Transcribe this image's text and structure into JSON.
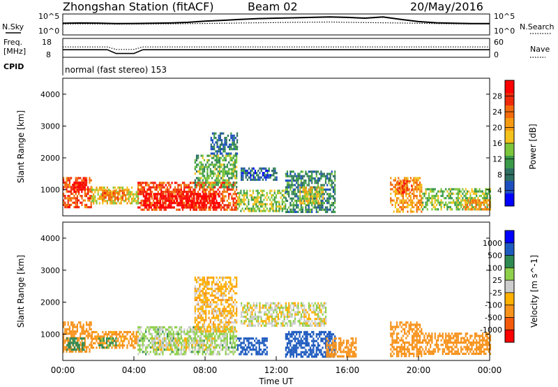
{
  "header": {
    "station": "Zhongshan Station (fitACF)",
    "beam": "Beam 02",
    "date": "20/May/2016"
  },
  "top_panels": {
    "nsky_label": "N.Sky",
    "nsky_tick_hi": "10^5",
    "nsky_tick_lo": "10^0",
    "nsearch_label": "N.Search",
    "nsearch_tick_hi": "10^5",
    "nsearch_tick_lo": "10^0",
    "freq_label_1": "Freq.",
    "freq_label_2": "[MHz]",
    "freq_tick_hi": "18",
    "freq_tick_lo": "8",
    "nave_label": "Nave",
    "nave_tick_hi": "60",
    "nave_tick_lo": "0",
    "cpid_label": "CPID",
    "cpid_text": "normal (fast stereo) 153"
  },
  "colors": {
    "power": [
      "#0000ff",
      "#1e4fbf",
      "#2e6f62",
      "#3a9a4a",
      "#7cc63c",
      "#f4c21c",
      "#f59a10",
      "#f26a0c",
      "#ee2a0a",
      "#ff0000"
    ],
    "velocity": [
      "#ff0000",
      "#f55a0a",
      "#f7921a",
      "#ffb000",
      "#cdcdcd",
      "#8fd04a",
      "#2e8a52",
      "#1e5bbf",
      "#0000ff"
    ]
  },
  "chart_data": [
    {
      "type": "line",
      "title": "N.Sky / N.Search",
      "x": [
        0,
        1,
        2,
        3,
        4,
        5,
        6,
        7,
        8,
        9,
        10,
        11,
        12,
        13,
        14,
        15,
        16,
        17,
        18,
        19,
        20,
        21,
        22,
        23,
        24
      ],
      "series": [
        {
          "name": "N.Sky",
          "values": [
            600,
            700,
            650,
            500,
            550,
            600,
            700,
            1000,
            2000,
            3000,
            5000,
            8000,
            10000,
            12000,
            15000,
            20000,
            15000,
            10000,
            20000,
            5000,
            1500,
            800,
            600,
            500,
            500
          ]
        },
        {
          "name": "N.Search",
          "values": [
            400,
            450,
            420,
            380,
            400,
            420,
            450,
            500,
            550,
            600,
            700,
            800,
            900,
            1000,
            1100,
            1200,
            1000,
            900,
            800,
            700,
            600,
            500,
            450,
            420,
            400
          ]
        }
      ],
      "yscale": "log",
      "ylim": [
        1,
        100000
      ],
      "yticks": [
        "10^0",
        "10^5"
      ]
    },
    {
      "type": "line",
      "title": "Freq. / Nave",
      "x": [
        0,
        2.5,
        3,
        4,
        4.5,
        24
      ],
      "series": [
        {
          "name": "Freq. [MHz]",
          "values": [
            12,
            12,
            10,
            10,
            12,
            12
          ]
        },
        {
          "name": "Nave",
          "values": [
            33,
            33,
            25,
            25,
            33,
            33
          ]
        }
      ],
      "ylim_left": [
        8,
        18
      ],
      "ylim_right": [
        0,
        60
      ]
    },
    {
      "type": "heatmap",
      "title": "Power",
      "xlabel": "",
      "ylabel": "Slant Range [km]",
      "xlim": [
        0,
        24
      ],
      "ylim": [
        180,
        4500
      ],
      "yticks": [
        1000,
        2000,
        3000,
        4000
      ],
      "colorbar": {
        "label": "Power [dB]",
        "ticks": [
          4,
          8,
          12,
          16,
          20,
          24,
          28
        ],
        "range": [
          0,
          30
        ]
      },
      "regions": [
        {
          "t0": 0.0,
          "t1": 1.6,
          "r0": 450,
          "r1": 1400,
          "value": 24
        },
        {
          "t0": 0.6,
          "t1": 1.4,
          "r0": 900,
          "r1": 1250,
          "value": 30
        },
        {
          "t0": 1.6,
          "t1": 4.2,
          "r0": 550,
          "r1": 1100,
          "value": 16
        },
        {
          "t0": 2.2,
          "t1": 3.6,
          "r0": 700,
          "r1": 1000,
          "value": 22
        },
        {
          "t0": 4.2,
          "t1": 9.8,
          "r0": 350,
          "r1": 1250,
          "value": 24
        },
        {
          "t0": 4.5,
          "t1": 8.8,
          "r0": 450,
          "r1": 900,
          "value": 29
        },
        {
          "t0": 7.4,
          "t1": 9.8,
          "r0": 1100,
          "r1": 2100,
          "value": 12
        },
        {
          "t0": 8.3,
          "t1": 9.8,
          "r0": 2100,
          "r1": 2800,
          "value": 7
        },
        {
          "t0": 9.8,
          "t1": 12.5,
          "r0": 350,
          "r1": 1000,
          "value": 14
        },
        {
          "t0": 10.0,
          "t1": 12.0,
          "r0": 1300,
          "r1": 1700,
          "value": 6
        },
        {
          "t0": 12.5,
          "t1": 15.3,
          "r0": 300,
          "r1": 1600,
          "value": 9
        },
        {
          "t0": 13.3,
          "t1": 14.6,
          "r0": 600,
          "r1": 1100,
          "value": 16
        },
        {
          "t0": 18.4,
          "t1": 20.2,
          "r0": 300,
          "r1": 1400,
          "value": 20
        },
        {
          "t0": 18.8,
          "t1": 19.6,
          "r0": 900,
          "r1": 1300,
          "value": 26
        },
        {
          "t0": 20.2,
          "t1": 24.0,
          "r0": 400,
          "r1": 1050,
          "value": 13
        },
        {
          "t0": 22.5,
          "t1": 24.0,
          "r0": 400,
          "r1": 700,
          "value": 20
        }
      ]
    },
    {
      "type": "heatmap",
      "title": "Velocity",
      "xlabel": "Time UT",
      "ylabel": "Slant Range [km]",
      "xlim": [
        0,
        24
      ],
      "xticks": [
        "00:00",
        "04:00",
        "08:00",
        "12:00",
        "16:00",
        "20:00",
        "00:00"
      ],
      "ylim": [
        180,
        4500
      ],
      "yticks": [
        1000,
        2000,
        3000,
        4000
      ],
      "colorbar": {
        "label": "Velocity [m s^-1]",
        "ticks": [
          "-1000",
          "-500",
          "-100",
          "-25",
          "25",
          "100",
          "500",
          "1000"
        ]
      },
      "regions": [
        {
          "t0": 0.0,
          "t1": 1.6,
          "r0": 450,
          "r1": 1400,
          "value": -200
        },
        {
          "t0": 0.2,
          "t1": 1.2,
          "r0": 500,
          "r1": 900,
          "value": 200
        },
        {
          "t0": 1.6,
          "t1": 4.2,
          "r0": 550,
          "r1": 1100,
          "value": -150
        },
        {
          "t0": 2.0,
          "t1": 3.0,
          "r0": 600,
          "r1": 900,
          "value": 150
        },
        {
          "t0": 4.2,
          "t1": 9.8,
          "r0": 350,
          "r1": 1250,
          "value": 50
        },
        {
          "t0": 5.0,
          "t1": 8.5,
          "r0": 500,
          "r1": 900,
          "value": 0
        },
        {
          "t0": 7.4,
          "t1": 9.8,
          "r0": 1100,
          "r1": 2800,
          "value": -60
        },
        {
          "t0": 9.8,
          "t1": 11.5,
          "r0": 350,
          "r1": 900,
          "value": 600
        },
        {
          "t0": 10.0,
          "t1": 14.8,
          "r0": 1300,
          "r1": 2000,
          "value": 0
        },
        {
          "t0": 12.5,
          "t1": 15.3,
          "r0": 300,
          "r1": 1100,
          "value": 800
        },
        {
          "t0": 14.8,
          "t1": 16.5,
          "r0": 300,
          "r1": 900,
          "value": -200
        },
        {
          "t0": 18.4,
          "t1": 20.2,
          "r0": 300,
          "r1": 1400,
          "value": -250
        },
        {
          "t0": 20.2,
          "t1": 24.0,
          "r0": 400,
          "r1": 1050,
          "value": -200
        }
      ]
    }
  ]
}
